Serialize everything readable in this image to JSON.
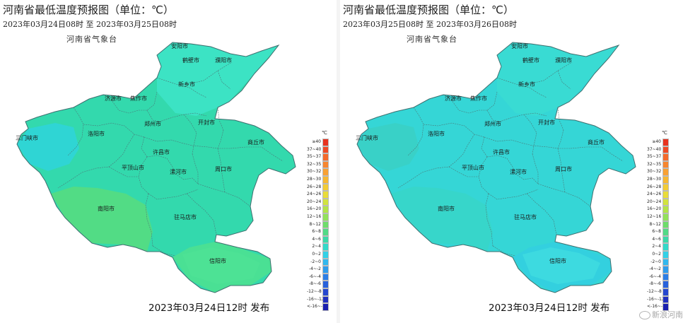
{
  "panels": [
    {
      "title": "河南省最低温度预报图（单位：℃）",
      "date_range": "2023年03月24日08时  至  2023年03月25日08时",
      "agency": "河南省气象台",
      "issued": "2023年03月24日12时 发布",
      "colors": {
        "base": "#33d9ad",
        "north": "#3ee4c8",
        "south": "#4fe08f",
        "southwest": "#58dc7e",
        "xinyang": "#4ee295",
        "sanmenxia": "#2fd4da"
      },
      "cities": [
        {
          "name": "安阳市"
        },
        {
          "name": "鹤壁市"
        },
        {
          "name": "濮阳市"
        },
        {
          "name": "新乡市"
        },
        {
          "name": "济源市"
        },
        {
          "name": "焦作市"
        },
        {
          "name": "三门峡市"
        },
        {
          "name": "洛阳市"
        },
        {
          "name": "郑州市"
        },
        {
          "name": "开封市"
        },
        {
          "name": "商丘市"
        },
        {
          "name": "许昌市"
        },
        {
          "name": "平顶山市"
        },
        {
          "name": "漯河市"
        },
        {
          "name": "周口市"
        },
        {
          "name": "南阳市"
        },
        {
          "name": "驻马店市"
        },
        {
          "name": "信阳市"
        }
      ]
    },
    {
      "title": "河南省最低温度预报图（单位：℃）",
      "date_range": "2023年03月25日08时  至  2023年03月26日08时",
      "agency": "河南省气象台",
      "issued": "2023年03月24日12时 发布",
      "colors": {
        "base": "#35d6d6",
        "north": "#39dcd2",
        "south": "#33cfe0",
        "southwest": "#37d6c8",
        "xinyang": "#3fdce0",
        "sanmenxia": "#3ad0c4"
      },
      "cities": [
        {
          "name": "安阳市"
        },
        {
          "name": "鹤壁市"
        },
        {
          "name": "濮阳市"
        },
        {
          "name": "新乡市"
        },
        {
          "name": "济源市"
        },
        {
          "name": "焦作市"
        },
        {
          "name": "三门峡市"
        },
        {
          "name": "洛阳市"
        },
        {
          "name": "郑州市"
        },
        {
          "name": "开封市"
        },
        {
          "name": "商丘市"
        },
        {
          "name": "许昌市"
        },
        {
          "name": "平顶山市"
        },
        {
          "name": "漯河市"
        },
        {
          "name": "周口市"
        },
        {
          "name": "南阳市"
        },
        {
          "name": "驻马店市"
        },
        {
          "name": "信阳市"
        }
      ]
    }
  ],
  "legend": {
    "unit": "℃",
    "ranges": [
      {
        "label": "≥40",
        "color": "#e8321e"
      },
      {
        "label": "37~40",
        "color": "#ef4a25"
      },
      {
        "label": "35~37",
        "color": "#f46a2c"
      },
      {
        "label": "32~35",
        "color": "#f7862f"
      },
      {
        "label": "30~32",
        "color": "#f9a133"
      },
      {
        "label": "28~30",
        "color": "#f7b832"
      },
      {
        "label": "26~28",
        "color": "#f2cc35"
      },
      {
        "label": "24~26",
        "color": "#e9dc3a"
      },
      {
        "label": "20~24",
        "color": "#d2e33e"
      },
      {
        "label": "16~20",
        "color": "#b3e449"
      },
      {
        "label": "12~16",
        "color": "#93e25a"
      },
      {
        "label": "8~12",
        "color": "#6fdd6c"
      },
      {
        "label": "6~8",
        "color": "#52da86"
      },
      {
        "label": "4~6",
        "color": "#3bd9a8"
      },
      {
        "label": "2~4",
        "color": "#33d9c9"
      },
      {
        "label": "0~2",
        "color": "#34d1e6"
      },
      {
        "label": "-2~0",
        "color": "#32b8ee"
      },
      {
        "label": "-4~-2",
        "color": "#2f9cec"
      },
      {
        "label": "-6~-4",
        "color": "#2c7ee6"
      },
      {
        "label": "-8~-6",
        "color": "#2962dc"
      },
      {
        "label": "-12~-8",
        "color": "#2647cf"
      },
      {
        "label": "-16~-12",
        "color": "#2130bf"
      },
      {
        "label": "<-16~-12",
        "color": "#1a1fae"
      }
    ]
  },
  "watermark": "新浪河南"
}
